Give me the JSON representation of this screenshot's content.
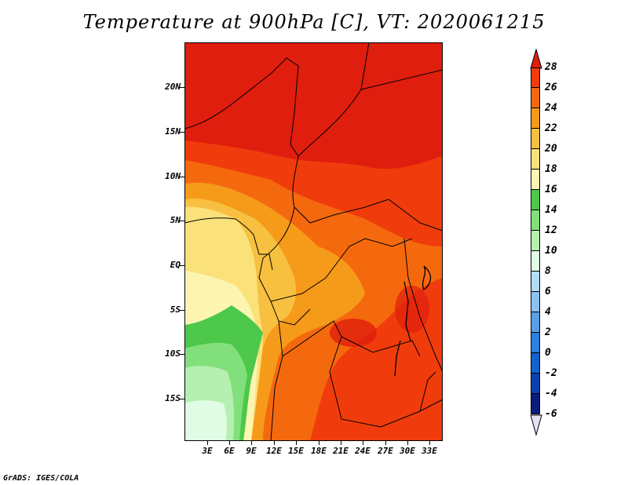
{
  "title": "Temperature at 900hPa [C], VT: 2020061215",
  "footer": "GrADS: IGES/COLA",
  "map": {
    "lat_labels": [
      "20N",
      "15N",
      "10N",
      "5N",
      "EQ",
      "5S",
      "10S",
      "15S"
    ],
    "lon_labels": [
      "3E",
      "6E",
      "9E",
      "12E",
      "15E",
      "18E",
      "21E",
      "24E",
      "27E",
      "30E",
      "33E"
    ]
  },
  "colorbar": {
    "labels": [
      "28",
      "26",
      "24",
      "22",
      "20",
      "18",
      "16",
      "14",
      "12",
      "10",
      "8",
      "6",
      "4",
      "2",
      "0",
      "-2",
      "-4",
      "-6"
    ],
    "colors": [
      "#e01e0e",
      "#f03c0c",
      "#f5690e",
      "#f69a1a",
      "#f8c040",
      "#fbe17a",
      "#fcf5b2",
      "#4ec84a",
      "#82e07c",
      "#b5f0b0",
      "#e0fce4",
      "#b4dcf6",
      "#8cc2f0",
      "#5aa0e6",
      "#2c80e0",
      "#1462cc",
      "#0c40b0",
      "#0a1c7c"
    ]
  }
}
